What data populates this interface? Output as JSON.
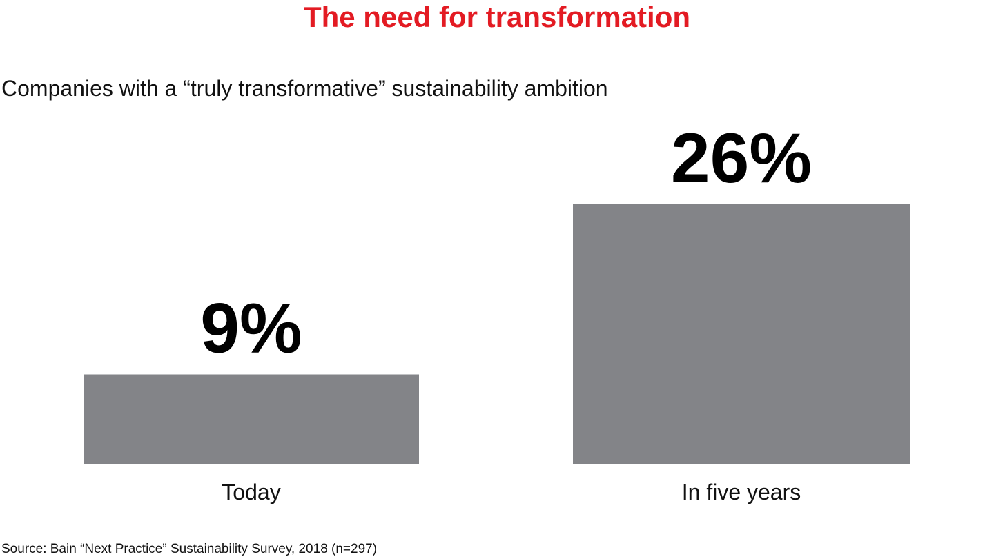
{
  "chart_data": {
    "type": "bar",
    "title": "The need for transformation",
    "subtitle": "Companies with a “truly transformative” sustainability ambition",
    "categories": [
      "Today",
      "In five years"
    ],
    "values": [
      9,
      26
    ],
    "data_labels": [
      "9%",
      "26%"
    ],
    "bar_color": "#838488",
    "title_color": "#e31b23",
    "grid": false,
    "source": "Source: Bain “Next Practice” Sustainability Survey, 2018 (n=297)"
  }
}
